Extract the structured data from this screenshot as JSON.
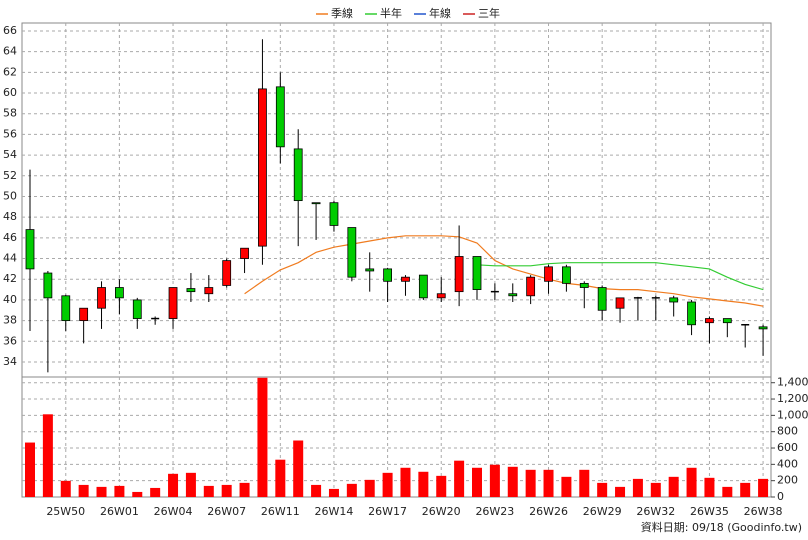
{
  "chart_data": [
    {
      "type": "candlestick",
      "open": [
        46.8,
        42.6,
        40.4,
        38.0,
        39.2,
        41.2,
        40.0,
        38.2,
        38.2,
        41.1,
        40.6,
        41.4,
        44.0,
        45.2,
        60.6,
        54.6,
        49.4,
        49.4,
        47.0,
        43.0,
        43.0,
        41.8,
        42.4,
        40.2,
        40.8,
        44.2,
        40.8,
        40.6,
        40.4,
        41.8,
        43.2,
        41.6,
        41.2,
        39.2,
        40.2,
        40.2,
        40.2,
        39.8,
        37.8,
        38.2,
        37.6,
        37.4
      ],
      "high": [
        52.6,
        42.8,
        40.5,
        39.2,
        41.8,
        42.0,
        40.2,
        38.4,
        41.2,
        42.6,
        42.4,
        44.0,
        45.0,
        65.2,
        62.0,
        56.5,
        49.4,
        49.6,
        47.0,
        44.6,
        43.1,
        42.4,
        42.4,
        42.2,
        47.2,
        44.2,
        41.6,
        41.6,
        42.4,
        43.4,
        43.4,
        41.8,
        41.4,
        40.2,
        40.3,
        40.4,
        40.4,
        40.0,
        38.4,
        38.2,
        37.6,
        37.6
      ],
      "low": [
        37.0,
        33.0,
        37.0,
        35.8,
        37.2,
        38.6,
        37.2,
        37.6,
        37.2,
        39.8,
        39.8,
        41.2,
        42.6,
        43.4,
        53.2,
        45.2,
        45.8,
        46.6,
        41.8,
        40.8,
        39.8,
        40.4,
        40.0,
        39.8,
        39.4,
        40.0,
        40.0,
        39.8,
        39.6,
        40.6,
        40.8,
        39.2,
        38.0,
        37.8,
        38.0,
        38.0,
        38.4,
        36.6,
        35.8,
        36.4,
        35.4,
        34.6
      ],
      "close": [
        43.0,
        40.2,
        38.0,
        39.2,
        41.2,
        40.2,
        38.2,
        38.2,
        41.2,
        40.8,
        41.2,
        43.8,
        45.0,
        60.4,
        54.8,
        49.6,
        49.3,
        47.2,
        42.2,
        42.8,
        41.8,
        42.2,
        40.2,
        40.6,
        44.2,
        41.0,
        40.8,
        40.4,
        42.2,
        43.2,
        41.6,
        41.2,
        39.0,
        40.2,
        40.2,
        40.2,
        39.8,
        37.6,
        38.2,
        37.8,
        37.6,
        37.2
      ],
      "series": [
        {
          "name": "季線",
          "color": "#f07c20",
          "values": [
            null,
            null,
            null,
            null,
            null,
            null,
            null,
            null,
            null,
            null,
            null,
            null,
            40.6,
            41.8,
            42.9,
            43.6,
            44.6,
            45.1,
            45.4,
            45.7,
            46.0,
            46.2,
            46.2,
            46.2,
            46.1,
            45.5,
            43.8,
            43.0,
            42.5,
            42.0,
            41.6,
            41.4,
            41.1,
            41.0,
            41.0,
            40.8,
            40.6,
            40.3,
            40.1,
            39.9,
            39.7,
            39.4
          ]
        },
        {
          "name": "半年",
          "color": "#33cc33",
          "values": [
            null,
            null,
            null,
            null,
            null,
            null,
            null,
            null,
            null,
            null,
            null,
            null,
            null,
            null,
            null,
            null,
            null,
            null,
            null,
            null,
            null,
            null,
            null,
            null,
            null,
            43.4,
            43.3,
            43.3,
            43.3,
            43.5,
            43.6,
            43.6,
            43.6,
            43.6,
            43.6,
            43.6,
            43.4,
            43.2,
            43.0,
            42.2,
            41.5,
            41.0
          ]
        },
        {
          "name": "年線",
          "color": "#2255cc",
          "values": [
            null,
            null,
            null,
            null,
            null,
            null,
            null,
            null,
            null,
            null,
            null,
            null,
            null,
            null,
            null,
            null,
            null,
            null,
            null,
            null,
            null,
            null,
            null,
            null,
            null,
            null,
            null,
            null,
            null,
            null,
            null,
            null,
            null,
            null,
            null,
            null,
            null,
            null,
            null,
            null,
            null,
            null
          ]
        },
        {
          "name": "三年",
          "color": "#cc2222",
          "values": [
            null,
            null,
            null,
            null,
            null,
            null,
            null,
            null,
            null,
            null,
            null,
            null,
            null,
            null,
            null,
            null,
            null,
            null,
            null,
            null,
            null,
            null,
            null,
            null,
            null,
            null,
            null,
            null,
            null,
            null,
            null,
            null,
            null,
            null,
            null,
            null,
            null,
            null,
            null,
            null,
            null,
            null
          ]
        }
      ],
      "up_color": "#ff0000",
      "down_color": "#00cc00",
      "ylim": [
        32.55,
        66.77
      ],
      "yticks": [
        34,
        36,
        38,
        40,
        42,
        44,
        46,
        48,
        50,
        52,
        54,
        56,
        58,
        60,
        62,
        64,
        66
      ],
      "grid": true
    },
    {
      "type": "bar",
      "categories": [
        null,
        null,
        "25W50",
        null,
        null,
        "26W01",
        null,
        null,
        "26W04",
        null,
        null,
        "26W07",
        null,
        null,
        "26W11",
        null,
        null,
        "26W14",
        null,
        null,
        "26W17",
        null,
        null,
        "26W20",
        null,
        null,
        "26W23",
        null,
        null,
        "26W26",
        null,
        null,
        "26W29",
        null,
        null,
        "26W32",
        null,
        null,
        "26W35",
        null,
        null,
        "26W38"
      ],
      "values": [
        667,
        1013,
        198,
        148,
        124,
        136,
        62,
        111,
        284,
        296,
        136,
        148,
        173,
        1460,
        457,
        692,
        148,
        99,
        161,
        210,
        296,
        358,
        309,
        259,
        445,
        358,
        395,
        370,
        333,
        333,
        247,
        333,
        173,
        124,
        222,
        173,
        247,
        358,
        235,
        124,
        173,
        222
      ],
      "color": "#ff0000",
      "ylim": [
        0,
        1470
      ],
      "yticks": [
        0,
        200,
        400,
        600,
        800,
        {
          "value": 1000,
          "label": "1,000"
        },
        {
          "value": 1200,
          "label": "1,200"
        },
        {
          "value": 1400,
          "label": "1,400"
        }
      ],
      "grid": true,
      "source": "資料日期: 09/18 (Goodinfo.tw)"
    }
  ]
}
